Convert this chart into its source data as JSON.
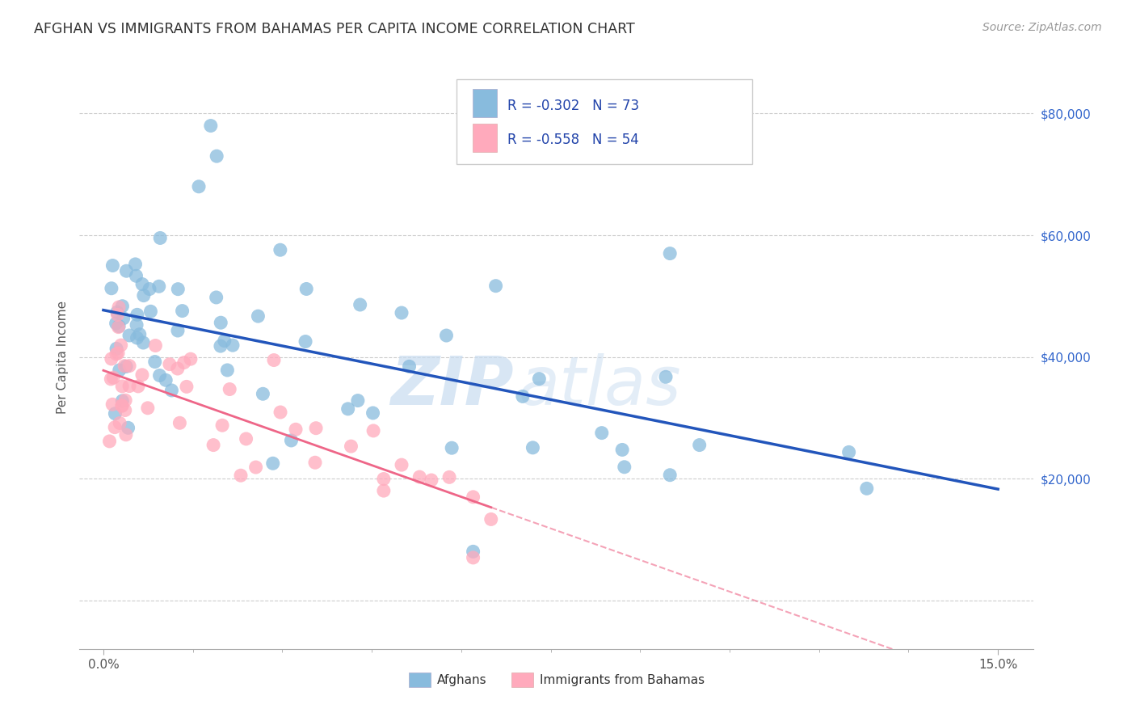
{
  "title": "AFGHAN VS IMMIGRANTS FROM BAHAMAS PER CAPITA INCOME CORRELATION CHART",
  "source": "Source: ZipAtlas.com",
  "ylabel": "Per Capita Income",
  "color_blue": "#88BBDD",
  "color_pink": "#FFAABC",
  "color_blue_line": "#2255BB",
  "color_pink_line": "#EE6688",
  "watermark_zip": "ZIP",
  "watermark_atlas": "atlas",
  "legend_label1": "Afghans",
  "legend_label2": "Immigrants from Bahamas",
  "blue_intercept": 47000,
  "blue_slope": -165000,
  "pink_intercept": 39000,
  "pink_slope": -330000,
  "seed_blue": 77,
  "seed_pink": 88,
  "n_blue": 73,
  "n_pink": 54,
  "blue_noise_std": 9000,
  "pink_noise_std": 7000
}
